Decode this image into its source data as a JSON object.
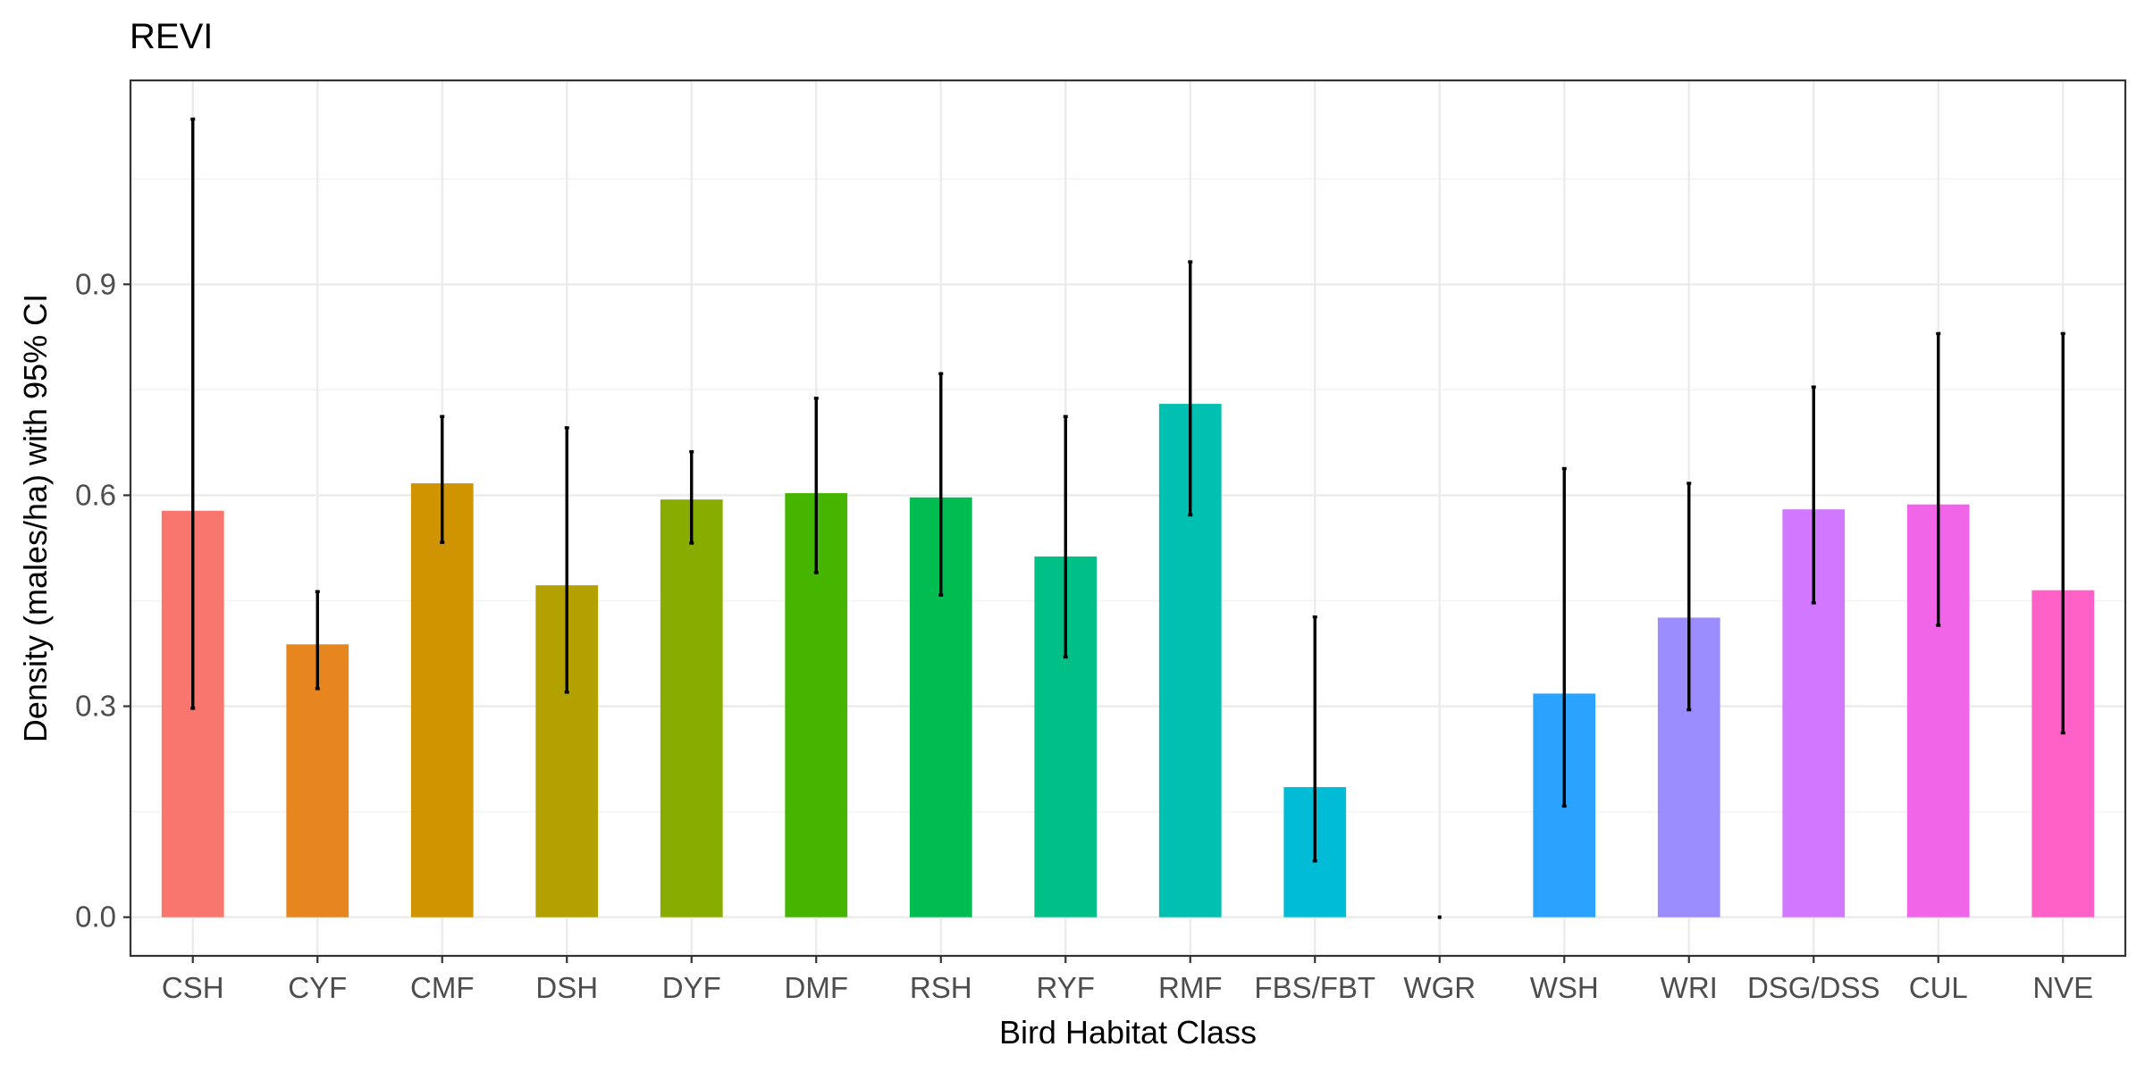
{
  "chart_data": {
    "type": "bar",
    "title": "REVI",
    "xlabel": "Bird Habitat Class",
    "ylabel": "Density (males/ha) with 95% CI",
    "ylim": [
      -0.055,
      1.19
    ],
    "yticks": [
      0.0,
      0.3,
      0.6,
      0.9
    ],
    "ytick_labels": [
      "0.0",
      "0.3",
      "0.6",
      "0.9"
    ],
    "grid": true,
    "legend": "none",
    "categories": [
      "CSH",
      "CYF",
      "CMF",
      "DSH",
      "DYF",
      "DMF",
      "RSH",
      "RYF",
      "RMF",
      "FBS/FBT",
      "WGR",
      "WSH",
      "WRI",
      "DSG/DSS",
      "CUL",
      "NVE"
    ],
    "values": [
      0.578,
      0.388,
      0.617,
      0.472,
      0.594,
      0.603,
      0.597,
      0.513,
      0.73,
      0.185,
      0.0,
      0.318,
      0.426,
      0.58,
      0.587,
      0.465
    ],
    "ci_lower": [
      0.297,
      0.325,
      0.533,
      0.32,
      0.532,
      0.49,
      0.458,
      0.37,
      0.572,
      0.08,
      0.0,
      0.158,
      0.295,
      0.447,
      0.415,
      0.262
    ],
    "ci_upper": [
      1.135,
      0.463,
      0.712,
      0.696,
      0.662,
      0.738,
      0.773,
      0.712,
      0.932,
      0.427,
      0.0,
      0.638,
      0.617,
      0.754,
      0.83,
      0.83
    ],
    "colors": [
      "#F8766D",
      "#E7851E",
      "#D09400",
      "#B2A100",
      "#89AC00",
      "#45B500",
      "#00BC51",
      "#00C087",
      "#00C0B2",
      "#00BCD6",
      "#00B3F2",
      "#29A3FF",
      "#9C8DFF",
      "#D277FF",
      "#F166E8",
      "#FF61C7"
    ]
  }
}
